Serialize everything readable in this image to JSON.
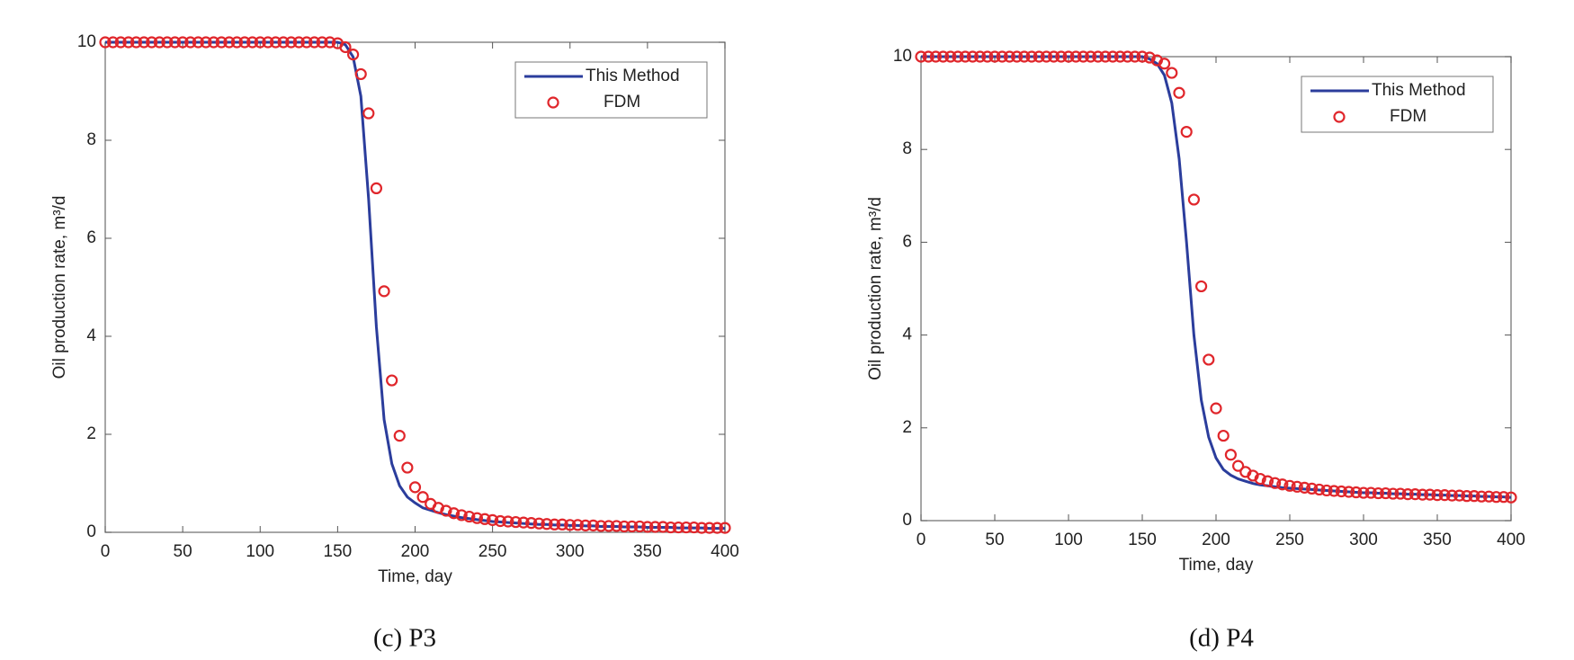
{
  "chart_data": [
    {
      "type": "line",
      "caption": "(c) P3",
      "xlabel": "Time, day",
      "ylabel": "Oil production rate, m³/d",
      "x": [
        0,
        5,
        10,
        15,
        20,
        25,
        30,
        35,
        40,
        45,
        50,
        55,
        60,
        65,
        70,
        75,
        80,
        85,
        90,
        95,
        100,
        105,
        110,
        115,
        120,
        125,
        130,
        135,
        140,
        145,
        150,
        155,
        160,
        165,
        170,
        175,
        180,
        185,
        190,
        195,
        200,
        205,
        210,
        215,
        220,
        225,
        230,
        235,
        240,
        245,
        250,
        255,
        260,
        265,
        270,
        275,
        280,
        285,
        290,
        295,
        300,
        305,
        310,
        315,
        320,
        325,
        330,
        335,
        340,
        345,
        350,
        355,
        360,
        365,
        370,
        375,
        380,
        385,
        390,
        395,
        400
      ],
      "series": [
        {
          "name": "This Method",
          "type": "line",
          "color": "#2b3d9c",
          "values": [
            10,
            10,
            10,
            10,
            10,
            10,
            10,
            10,
            10,
            10,
            10,
            10,
            10,
            10,
            10,
            10,
            10,
            10,
            10,
            10,
            10,
            10,
            10,
            10,
            10,
            10,
            10,
            10,
            10,
            10,
            10,
            9.95,
            9.7,
            8.9,
            6.8,
            4.2,
            2.3,
            1.4,
            0.95,
            0.72,
            0.6,
            0.5,
            0.45,
            0.4,
            0.36,
            0.33,
            0.3,
            0.28,
            0.26,
            0.24,
            0.22,
            0.21,
            0.2,
            0.19,
            0.18,
            0.17,
            0.16,
            0.16,
            0.15,
            0.15,
            0.14,
            0.14,
            0.13,
            0.13,
            0.12,
            0.12,
            0.12,
            0.11,
            0.11,
            0.11,
            0.1,
            0.1,
            0.1,
            0.1,
            0.09,
            0.09,
            0.09,
            0.09,
            0.08,
            0.08,
            0.08
          ]
        },
        {
          "name": "FDM",
          "type": "scatter",
          "color": "#e0262b",
          "values": [
            10,
            10,
            10,
            10,
            10,
            10,
            10,
            10,
            10,
            10,
            10,
            10,
            10,
            10,
            10,
            10,
            10,
            10,
            10,
            10,
            10,
            10,
            10,
            10,
            10,
            10,
            10,
            10,
            10,
            10,
            9.98,
            9.9,
            9.75,
            9.35,
            8.55,
            7.02,
            4.92,
            3.1,
            1.97,
            1.32,
            0.92,
            0.72,
            0.58,
            0.5,
            0.44,
            0.39,
            0.35,
            0.32,
            0.29,
            0.27,
            0.25,
            0.23,
            0.22,
            0.21,
            0.2,
            0.19,
            0.18,
            0.17,
            0.16,
            0.16,
            0.15,
            0.15,
            0.14,
            0.14,
            0.13,
            0.13,
            0.13,
            0.12,
            0.12,
            0.12,
            0.11,
            0.11,
            0.11,
            0.1,
            0.1,
            0.1,
            0.1,
            0.09,
            0.09,
            0.09,
            0.09
          ]
        }
      ],
      "xlim": [
        0,
        400
      ],
      "xticks": [
        0,
        50,
        100,
        150,
        200,
        250,
        300,
        350,
        400
      ],
      "ylim": [
        0,
        10
      ],
      "yticks": [
        0,
        2,
        4,
        6,
        8,
        10
      ],
      "legend": "northeast"
    },
    {
      "type": "line",
      "caption": "(d) P4",
      "xlabel": "Time, day",
      "ylabel": "Oil production rate, m³/d",
      "x": [
        0,
        5,
        10,
        15,
        20,
        25,
        30,
        35,
        40,
        45,
        50,
        55,
        60,
        65,
        70,
        75,
        80,
        85,
        90,
        95,
        100,
        105,
        110,
        115,
        120,
        125,
        130,
        135,
        140,
        145,
        150,
        155,
        160,
        165,
        170,
        175,
        180,
        185,
        190,
        195,
        200,
        205,
        210,
        215,
        220,
        225,
        230,
        235,
        240,
        245,
        250,
        255,
        260,
        265,
        270,
        275,
        280,
        285,
        290,
        295,
        300,
        305,
        310,
        315,
        320,
        325,
        330,
        335,
        340,
        345,
        350,
        355,
        360,
        365,
        370,
        375,
        380,
        385,
        390,
        395,
        400
      ],
      "series": [
        {
          "name": "This Method",
          "type": "line",
          "color": "#2b3d9c",
          "values": [
            10,
            10,
            10,
            10,
            10,
            10,
            10,
            10,
            10,
            10,
            10,
            10,
            10,
            10,
            10,
            10,
            10,
            10,
            10,
            10,
            10,
            10,
            10,
            10,
            10,
            10,
            10,
            10,
            10,
            10,
            10,
            9.95,
            9.85,
            9.6,
            9.0,
            7.8,
            6.0,
            4.0,
            2.6,
            1.8,
            1.35,
            1.1,
            0.98,
            0.9,
            0.85,
            0.8,
            0.77,
            0.75,
            0.73,
            0.71,
            0.7,
            0.69,
            0.68,
            0.67,
            0.66,
            0.65,
            0.64,
            0.63,
            0.62,
            0.61,
            0.6,
            0.6,
            0.59,
            0.59,
            0.58,
            0.58,
            0.57,
            0.57,
            0.56,
            0.56,
            0.55,
            0.55,
            0.54,
            0.54,
            0.53,
            0.53,
            0.52,
            0.52,
            0.51,
            0.51,
            0.5
          ]
        },
        {
          "name": "FDM",
          "type": "scatter",
          "color": "#e0262b",
          "values": [
            10,
            10,
            10,
            10,
            10,
            10,
            10,
            10,
            10,
            10,
            10,
            10,
            10,
            10,
            10,
            10,
            10,
            10,
            10,
            10,
            10,
            10,
            10,
            10,
            10,
            10,
            10,
            10,
            10,
            10,
            10,
            9.98,
            9.92,
            9.85,
            9.65,
            9.22,
            8.38,
            6.92,
            5.05,
            3.47,
            2.42,
            1.83,
            1.42,
            1.18,
            1.05,
            0.97,
            0.9,
            0.85,
            0.81,
            0.78,
            0.75,
            0.73,
            0.71,
            0.69,
            0.67,
            0.65,
            0.64,
            0.63,
            0.62,
            0.61,
            0.6,
            0.6,
            0.59,
            0.59,
            0.58,
            0.58,
            0.57,
            0.57,
            0.56,
            0.56,
            0.55,
            0.55,
            0.54,
            0.54,
            0.53,
            0.53,
            0.52,
            0.52,
            0.51,
            0.51,
            0.5
          ]
        }
      ],
      "xlim": [
        0,
        400
      ],
      "xticks": [
        0,
        50,
        100,
        150,
        200,
        250,
        300,
        350,
        400
      ],
      "ylim": [
        0,
        10
      ],
      "yticks": [
        0,
        2,
        4,
        6,
        8,
        10
      ],
      "legend": "northeast"
    }
  ]
}
